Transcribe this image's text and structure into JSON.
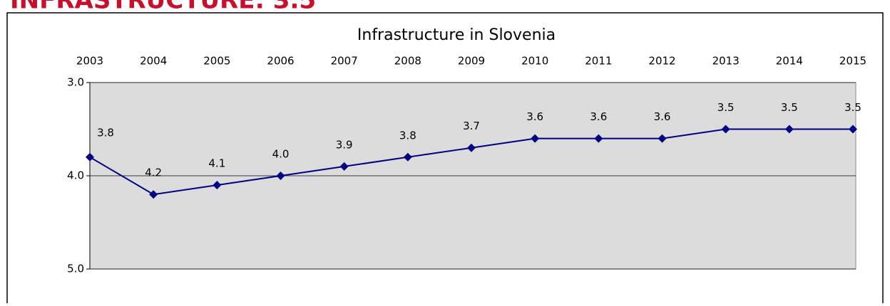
{
  "heading": "INFRASTRUCTURE: 3.5",
  "chart_data": {
    "type": "line",
    "title": "Infrastructure in Slovenia",
    "categories": [
      "2003",
      "2004",
      "2005",
      "2006",
      "2007",
      "2008",
      "2009",
      "2010",
      "2011",
      "2012",
      "2013",
      "2014",
      "2015"
    ],
    "series": [
      {
        "name": "Infrastructure",
        "color": "#000080",
        "values": [
          3.8,
          4.2,
          4.1,
          4.0,
          3.9,
          3.8,
          3.7,
          3.6,
          3.6,
          3.6,
          3.5,
          3.5,
          3.5
        ],
        "value_labels": [
          "3.8",
          "4.2",
          "4.1",
          "4.0",
          "3.9",
          "3.8",
          "3.7",
          "3.6",
          "3.6",
          "3.6",
          "3.5",
          "3.5",
          "3.5"
        ]
      }
    ],
    "ylim": [
      3,
      5
    ],
    "y_inverted": true,
    "yticks": [
      {
        "value": 3,
        "label": "3.0"
      },
      {
        "value": 4,
        "label": "4.0"
      },
      {
        "value": 5,
        "label": "5.0"
      }
    ],
    "grid": true,
    "plot_background": "#dcdcdc"
  }
}
